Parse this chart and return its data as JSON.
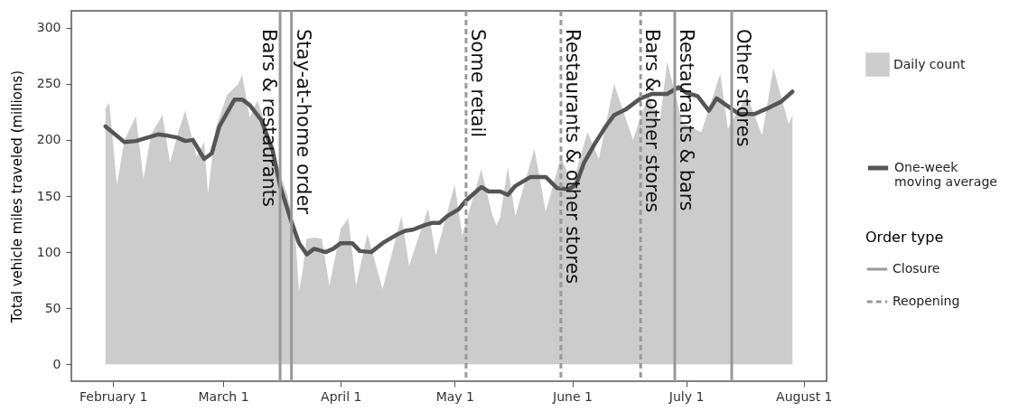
{
  "chart_data": {
    "type": "area",
    "ylabel": "Total vehicle miles traveled (millions)",
    "xlim": [
      "--01-21",
      "--08-07"
    ],
    "xticks": [
      {
        "value": "--02-01",
        "label": "February 1"
      },
      {
        "value": "--03-01",
        "label": "March 1"
      },
      {
        "value": "--04-01",
        "label": "April 1"
      },
      {
        "value": "--05-01",
        "label": "May 1"
      },
      {
        "value": "--06-01",
        "label": "June 1"
      },
      {
        "value": "--07-01",
        "label": "July 1"
      },
      {
        "value": "--08-01",
        "label": "August 1"
      }
    ],
    "ylim": [
      -15,
      315
    ],
    "yticks": [
      0,
      50,
      100,
      150,
      200,
      250,
      300
    ],
    "grid": false,
    "legend": "right",
    "legend_title": "Order type",
    "annotations": [
      "Closure",
      "Reopening"
    ],
    "series": [
      {
        "name": "Daily count",
        "type": "area",
        "color": "#cccccc",
        "x": [
          "--01-30",
          "--01-31",
          "--02-02",
          "--02-04",
          "--02-07",
          "--02-09",
          "--02-11",
          "--02-14",
          "--02-16",
          "--02-18",
          "--02-20",
          "--02-23",
          "--02-25",
          "--02-26",
          "--02-28",
          "--03-02",
          "--03-05",
          "--03-06",
          "--03-08",
          "--03-10",
          "--03-12",
          "--03-14",
          "--03-16",
          "--03-18",
          "--03-20",
          "--03-21",
          "--03-22",
          "--03-23",
          "--03-25",
          "--03-27",
          "--03-29",
          "--04-01",
          "--04-03",
          "--04-05",
          "--04-08",
          "--04-12",
          "--04-17",
          "--04-19",
          "--04-24",
          "--04-26",
          "--05-01",
          "--05-03",
          "--05-08",
          "--05-11",
          "--05-12",
          "--05-13",
          "--05-15",
          "--05-17",
          "--05-22",
          "--05-25",
          "--05-29",
          "--06-01",
          "--06-05",
          "--06-08",
          "--06-12",
          "--06-17",
          "--06-21",
          "--06-24",
          "--06-26",
          "--06-30",
          "--07-05",
          "--07-10",
          "--07-12",
          "--07-17",
          "--07-21",
          "--07-24",
          "--07-28",
          "--07-29"
        ],
        "values": [
          228,
          233,
          160,
          200,
          221,
          165,
          205,
          222,
          180,
          205,
          226,
          185,
          198,
          152,
          210,
          240,
          250,
          258,
          220,
          235,
          215,
          185,
          170,
          150,
          115,
          65,
          85,
          112,
          113,
          112,
          70,
          121,
          130,
          70,
          116,
          67,
          132,
          88,
          139,
          97,
          160,
          115,
          174,
          132,
          124,
          131,
          176,
          132,
          192,
          136,
          185,
          160,
          207,
          183,
          250,
          200,
          240,
          215,
          270,
          215,
          207,
          259,
          210,
          240,
          204,
          264,
          214,
          222
        ]
      },
      {
        "name": "One-week moving average",
        "type": "line",
        "color": "#555555",
        "x": [
          "--01-30",
          "--02-04",
          "--02-07",
          "--02-10",
          "--02-13",
          "--02-15",
          "--02-18",
          "--02-20",
          "--02-22",
          "--02-25",
          "--02-27",
          "--02-29",
          "--03-04",
          "--03-06",
          "--03-08",
          "--03-11",
          "--03-14",
          "--03-16",
          "--03-19",
          "--03-21",
          "--03-23",
          "--03-25",
          "--03-28",
          "--03-30",
          "--04-01",
          "--04-04",
          "--04-06",
          "--04-09",
          "--04-12",
          "--04-16",
          "--04-18",
          "--04-20",
          "--04-23",
          "--04-25",
          "--04-27",
          "--04-29",
          "--05-02",
          "--05-04",
          "--05-06",
          "--05-08",
          "--05-10",
          "--05-13",
          "--05-15",
          "--05-17",
          "--05-21",
          "--05-25",
          "--05-28",
          "--05-31",
          "--06-02",
          "--06-04",
          "--06-07",
          "--06-10",
          "--06-12",
          "--06-15",
          "--06-19",
          "--06-22",
          "--06-26",
          "--06-29",
          "--07-01",
          "--07-04",
          "--07-07",
          "--07-09",
          "--07-12",
          "--07-15",
          "--07-19",
          "--07-23",
          "--07-26",
          "--07-29"
        ],
        "values": [
          212,
          198,
          199,
          202,
          205,
          204,
          202,
          199,
          200,
          183,
          188,
          212,
          236,
          236,
          231,
          218,
          191,
          159,
          127,
          108,
          98,
          103,
          100,
          103,
          108,
          108,
          101,
          100,
          108,
          116,
          119,
          120,
          124,
          126,
          126,
          132,
          138,
          146,
          152,
          158,
          154,
          154,
          151,
          159,
          167,
          167,
          157,
          156,
          160,
          179,
          197,
          213,
          222,
          227,
          237,
          241,
          241,
          247,
          242,
          239,
          226,
          237,
          230,
          223,
          223,
          229,
          234,
          243
        ]
      }
    ],
    "ref_lines": [
      {
        "axis": "x",
        "value": "--03-16",
        "label": "Bars & restaurants",
        "color": "#999999",
        "line_style": "solid"
      },
      {
        "axis": "x",
        "value": "--03-19",
        "label": "Stay-at-home order",
        "color": "#999999",
        "line_style": "solid"
      },
      {
        "axis": "x",
        "value": "--05-04",
        "label": "Some retail",
        "color": "#999999",
        "line_style": "dashed"
      },
      {
        "axis": "x",
        "value": "--05-29",
        "label": "Restaurants & other stores",
        "color": "#999999",
        "line_style": "dashed"
      },
      {
        "axis": "x",
        "value": "--06-19",
        "label": "Bars & other stores",
        "color": "#999999",
        "line_style": "dashed"
      },
      {
        "axis": "x",
        "value": "--06-28",
        "label": "Restaurants & bars",
        "color": "#999999",
        "line_style": "solid"
      },
      {
        "axis": "x",
        "value": "--07-13",
        "label": "Other stores",
        "color": "#999999",
        "line_style": "solid"
      }
    ]
  }
}
